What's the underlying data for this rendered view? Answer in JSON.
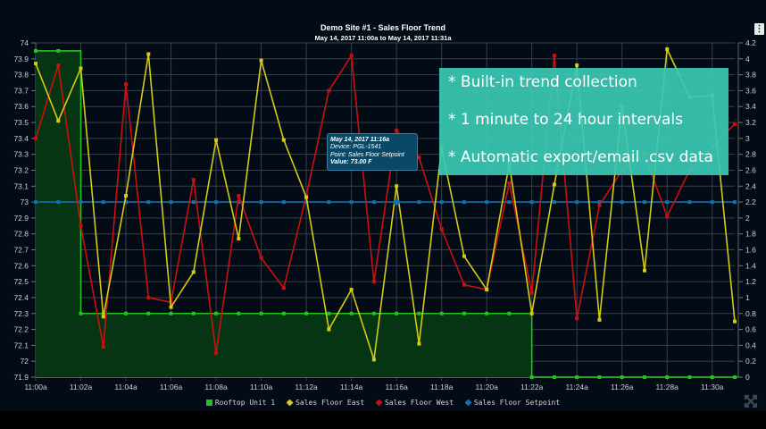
{
  "header": {
    "title": "Demo Site #1 - Sales Floor Trend",
    "subtitle": "May 14, 2017 11:00a to May 14, 2017 11:31a",
    "menu_icon": "⋮"
  },
  "tooltip": {
    "date": "May 14, 2017 11:16a",
    "device": "Device: PGL-1541",
    "point": "Point: Sales Floor Setpoint",
    "value": "Value: 73.00 F"
  },
  "callout": {
    "lines": [
      "* Built-in trend collection",
      "* 1 minute to 24 hour intervals",
      "* Automatic export/email .csv data"
    ]
  },
  "legend": [
    {
      "label": "Rooftop Unit 1",
      "color": "#22c31f",
      "shape": "square"
    },
    {
      "label": "Sales Floor East",
      "color": "#d4cc14",
      "shape": "diamond"
    },
    {
      "label": "Sales Floor West",
      "color": "#cc1010",
      "shape": "diamond"
    },
    {
      "label": "Sales Floor Setpoint",
      "color": "#1470a8",
      "shape": "diamond"
    }
  ],
  "colors": {
    "background": "#020b16",
    "grid": "#3a3f48",
    "rooftop": "#22c31f",
    "rooftop_fill": "#053512",
    "east": "#d4cc14",
    "west": "#cc1010",
    "setpoint": "#1470a8",
    "callout": "#3ac8b4"
  },
  "chart_data": {
    "type": "line",
    "title": "Demo Site #1 - Sales Floor Trend",
    "subtitle": "May 14, 2017 11:00a to May 14, 2017 11:31a",
    "xlabel": "",
    "ylabel": "",
    "x": [
      "11:00a",
      "11:01a",
      "11:02a",
      "11:03a",
      "11:04a",
      "11:05a",
      "11:06a",
      "11:07a",
      "11:08a",
      "11:09a",
      "11:10a",
      "11:11a",
      "11:12a",
      "11:13a",
      "11:14a",
      "11:15a",
      "11:16a",
      "11:17a",
      "11:18a",
      "11:19a",
      "11:20a",
      "11:21a",
      "11:22a",
      "11:23a",
      "11:24a",
      "11:25a",
      "11:26a",
      "11:27a",
      "11:28a",
      "11:29a",
      "11:30a",
      "11:31a"
    ],
    "x_tick_labels": [
      "11:00a",
      "11:02a",
      "11:04a",
      "11:06a",
      "11:08a",
      "11:10a",
      "11:12a",
      "11:14a",
      "11:16a",
      "11:18a",
      "11:20a",
      "11:22a",
      "11:24a",
      "11:26a",
      "11:28a",
      "11:30a"
    ],
    "y_left": {
      "ticks": [
        "74",
        "73.9",
        "73.8",
        "73.7",
        "73.6",
        "73.5",
        "73.4",
        "73.3",
        "73.2",
        "73.1",
        "73",
        "72.9",
        "72.8",
        "72.7",
        "72.6",
        "72.5",
        "72.4",
        "72.3",
        "72.2",
        "72.1",
        "72",
        "71.9"
      ],
      "range": [
        71.9,
        74
      ]
    },
    "y_right": {
      "ticks": [
        "4.2",
        "4",
        "3.8",
        "3.6",
        "3.4",
        "3.2",
        "3",
        "2.8",
        "2.6",
        "2.4",
        "2.2",
        "2",
        "1.8",
        "1.6",
        "1.4",
        "1.2",
        "1",
        "0.8",
        "0.6",
        "0.4",
        "0.2",
        "0"
      ],
      "range": [
        0,
        4.2
      ]
    },
    "grid": true,
    "legend_position": "bottom",
    "series": [
      {
        "name": "Rooftop Unit 1",
        "axis": "right",
        "step": true,
        "area": true,
        "values": [
          4.1,
          4.1,
          0.8,
          0.8,
          0.8,
          0.8,
          0.8,
          0.8,
          0.8,
          0.8,
          0.8,
          0.8,
          0.8,
          0.8,
          0.8,
          0.8,
          0.8,
          0.8,
          0.8,
          0.8,
          0.8,
          0.8,
          0,
          0,
          0,
          0,
          0,
          0,
          0,
          0,
          0,
          0
        ]
      },
      {
        "name": "Sales Floor East",
        "axis": "left",
        "values": [
          73.87,
          73.51,
          73.84,
          72.28,
          73.04,
          73.93,
          72.34,
          72.56,
          73.39,
          72.77,
          73.89,
          73.39,
          73.03,
          72.2,
          72.45,
          72.01,
          73.1,
          72.11,
          73.34,
          72.66,
          72.45,
          73.24,
          72.3,
          73.11,
          73.86,
          72.26,
          73.6,
          72.57,
          73.96,
          73.66,
          73.67,
          72.25
        ]
      },
      {
        "name": "Sales Floor West",
        "axis": "left",
        "values": [
          73.4,
          73.86,
          72.85,
          72.09,
          73.74,
          72.4,
          72.37,
          73.14,
          72.05,
          73.04,
          72.65,
          72.46,
          73.04,
          73.7,
          73.92,
          72.5,
          73.45,
          73.28,
          72.83,
          72.48,
          72.45,
          73.12,
          72.43,
          73.92,
          72.27,
          72.98,
          73.2,
          73.3,
          72.91,
          73.2,
          73.35,
          73.49
        ]
      },
      {
        "name": "Sales Floor Setpoint",
        "axis": "left",
        "values": [
          73,
          73,
          73,
          73,
          73,
          73,
          73,
          73,
          73,
          73,
          73,
          73,
          73,
          73,
          73,
          73,
          73,
          73,
          73,
          73,
          73,
          73,
          73,
          73,
          73,
          73,
          73,
          73,
          73,
          73,
          73,
          73
        ]
      }
    ],
    "annotations": [
      {
        "type": "tooltip",
        "x": "11:16a",
        "series": "Sales Floor Setpoint",
        "text": "May 14, 2017 11:16a / Device: PGL-1541 / Point: Sales Floor Setpoint / Value: 73.00 F"
      }
    ]
  }
}
